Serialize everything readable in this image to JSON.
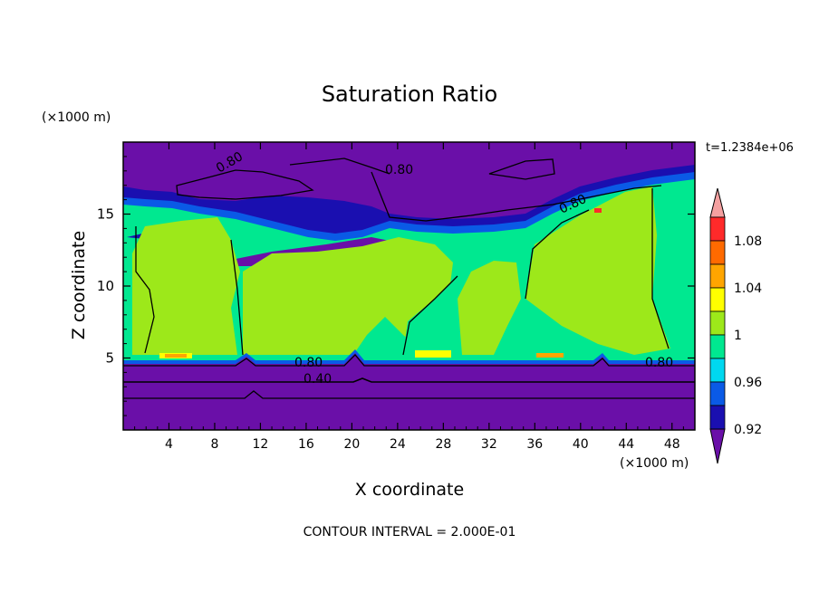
{
  "chart_data": {
    "type": "heatmap",
    "title": "Saturation Ratio",
    "xlabel": "X coordinate",
    "ylabel": "Z coordinate",
    "x_unit": "(×1000 m)",
    "y_unit": "(×1000 m)",
    "time_label": "t=1.2384e+06",
    "footer": "CONTOUR INTERVAL = 2.000E-01",
    "xlim": [
      0,
      50
    ],
    "ylim": [
      0,
      20
    ],
    "x_ticks": [
      "4",
      "8",
      "12",
      "16",
      "20",
      "24",
      "28",
      "32",
      "36",
      "40",
      "44",
      "48"
    ],
    "y_ticks": [
      "5",
      "10",
      "15"
    ],
    "colorbar": {
      "labels": [
        "1.08",
        "1.04",
        "1",
        "0.96",
        "0.92"
      ],
      "bins": [
        {
          "lo": null,
          "hi": 0.92,
          "color": "#6a0fa8"
        },
        {
          "lo": 0.92,
          "hi": 0.94,
          "color": "#1a0fb0"
        },
        {
          "lo": 0.94,
          "hi": 0.96,
          "color": "#0a5ae6"
        },
        {
          "lo": 0.96,
          "hi": 0.98,
          "color": "#00d8f0"
        },
        {
          "lo": 0.98,
          "hi": 1.0,
          "color": "#00e890"
        },
        {
          "lo": 1.0,
          "hi": 1.02,
          "color": "#9de81a"
        },
        {
          "lo": 1.02,
          "hi": 1.04,
          "color": "#ffff00"
        },
        {
          "lo": 1.04,
          "hi": 1.06,
          "color": "#ffa500"
        },
        {
          "lo": 1.06,
          "hi": 1.08,
          "color": "#ff6a00"
        },
        {
          "lo": 1.08,
          "hi": 1.1,
          "color": "#ff2a2a"
        },
        {
          "lo": 1.1,
          "hi": null,
          "color": "#f4a0a0"
        }
      ]
    },
    "contour_labels": [
      "0.80",
      "0.80",
      "0.80",
      "0.80",
      "0.80",
      "0.40"
    ]
  }
}
